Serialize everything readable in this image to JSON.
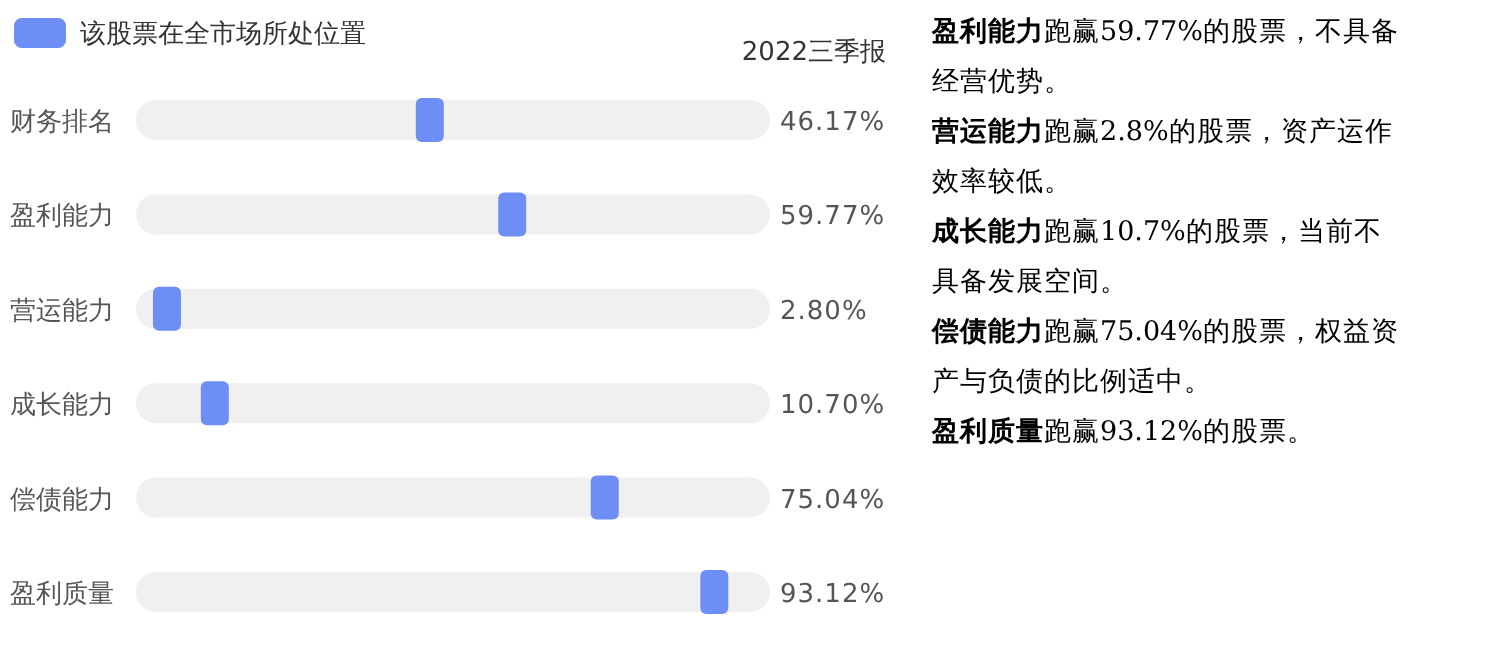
{
  "chart_data": {
    "type": "other",
    "subtitle": "2022三季报",
    "categories": [
      "财务排名",
      "盈利能力",
      "营运能力",
      "成长能力",
      "偿债能力",
      "盈利质量"
    ],
    "series": [
      {
        "name": "该股票在全市场所处位置",
        "color": "#6c8ef5",
        "values": [
          46.17,
          59.77,
          2.8,
          10.7,
          75.04,
          93.12
        ],
        "value_labels": [
          "46.17%",
          "59.77%",
          "2.80%",
          "10.70%",
          "75.04%",
          "93.12%"
        ]
      }
    ],
    "legend": "top left",
    "annotations": [
      "**盈利能力**跑赢59.77%的股票，不具备经营优势。",
      "**营运能力**跑赢2.8%的股票，资产运作效率较低。",
      "**成长能力**跑赢10.7%的股票，当前不具备发展空间。",
      "**偿债能力**跑赢75.04%的股票，权益资产与负债的比例适中。",
      "**盈利质量**跑赢93.12%的股票。"
    ]
  }
}
